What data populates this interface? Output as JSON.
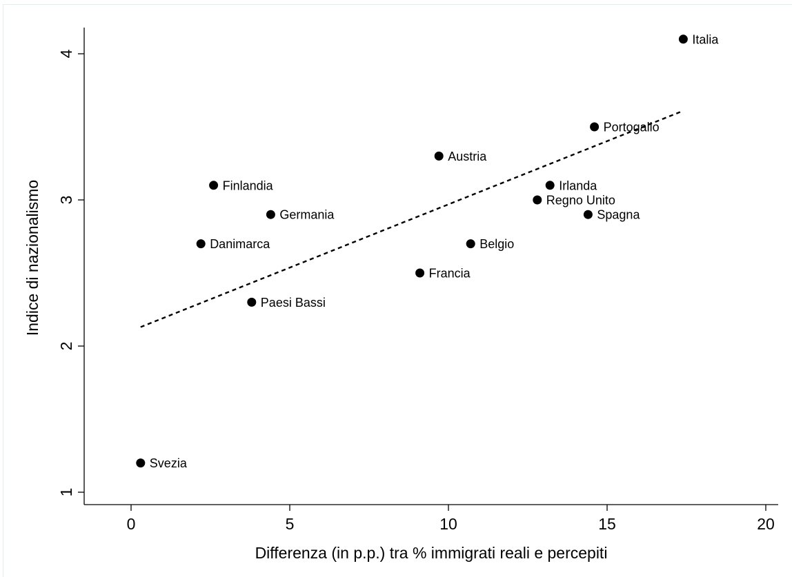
{
  "chart_data": {
    "type": "scatter",
    "title": "",
    "xlabel": "Differenza (in p.p.) tra % immigrati reali e percepiti",
    "ylabel": "Indice di nazionalismo",
    "xlim": [
      -1.5,
      20.4
    ],
    "ylim": [
      0.85,
      4.2
    ],
    "xticks": [
      0,
      5,
      10,
      15,
      20
    ],
    "yticks": [
      1,
      2,
      3,
      4
    ],
    "grid": false,
    "points": [
      {
        "label": "Italia",
        "x": 17.4,
        "y": 4.1
      },
      {
        "label": "Portogallo",
        "x": 14.6,
        "y": 3.5
      },
      {
        "label": "Austria",
        "x": 9.7,
        "y": 3.3
      },
      {
        "label": "Finlandia",
        "x": 2.6,
        "y": 3.1
      },
      {
        "label": "Irlanda",
        "x": 13.2,
        "y": 3.1
      },
      {
        "label": "Regno Unito",
        "x": 12.8,
        "y": 3.0
      },
      {
        "label": "Germania",
        "x": 4.4,
        "y": 2.9
      },
      {
        "label": "Spagna",
        "x": 14.4,
        "y": 2.9
      },
      {
        "label": "Danimarca",
        "x": 2.2,
        "y": 2.7
      },
      {
        "label": "Belgio",
        "x": 10.7,
        "y": 2.7
      },
      {
        "label": "Francia",
        "x": 9.1,
        "y": 2.5
      },
      {
        "label": "Paesi Bassi",
        "x": 3.8,
        "y": 2.3
      },
      {
        "label": "Svezia",
        "x": 0.3,
        "y": 1.2
      }
    ],
    "fit_line": {
      "style": "dashed",
      "x": [
        0.3,
        17.4
      ],
      "y": [
        2.13,
        3.61
      ]
    }
  }
}
